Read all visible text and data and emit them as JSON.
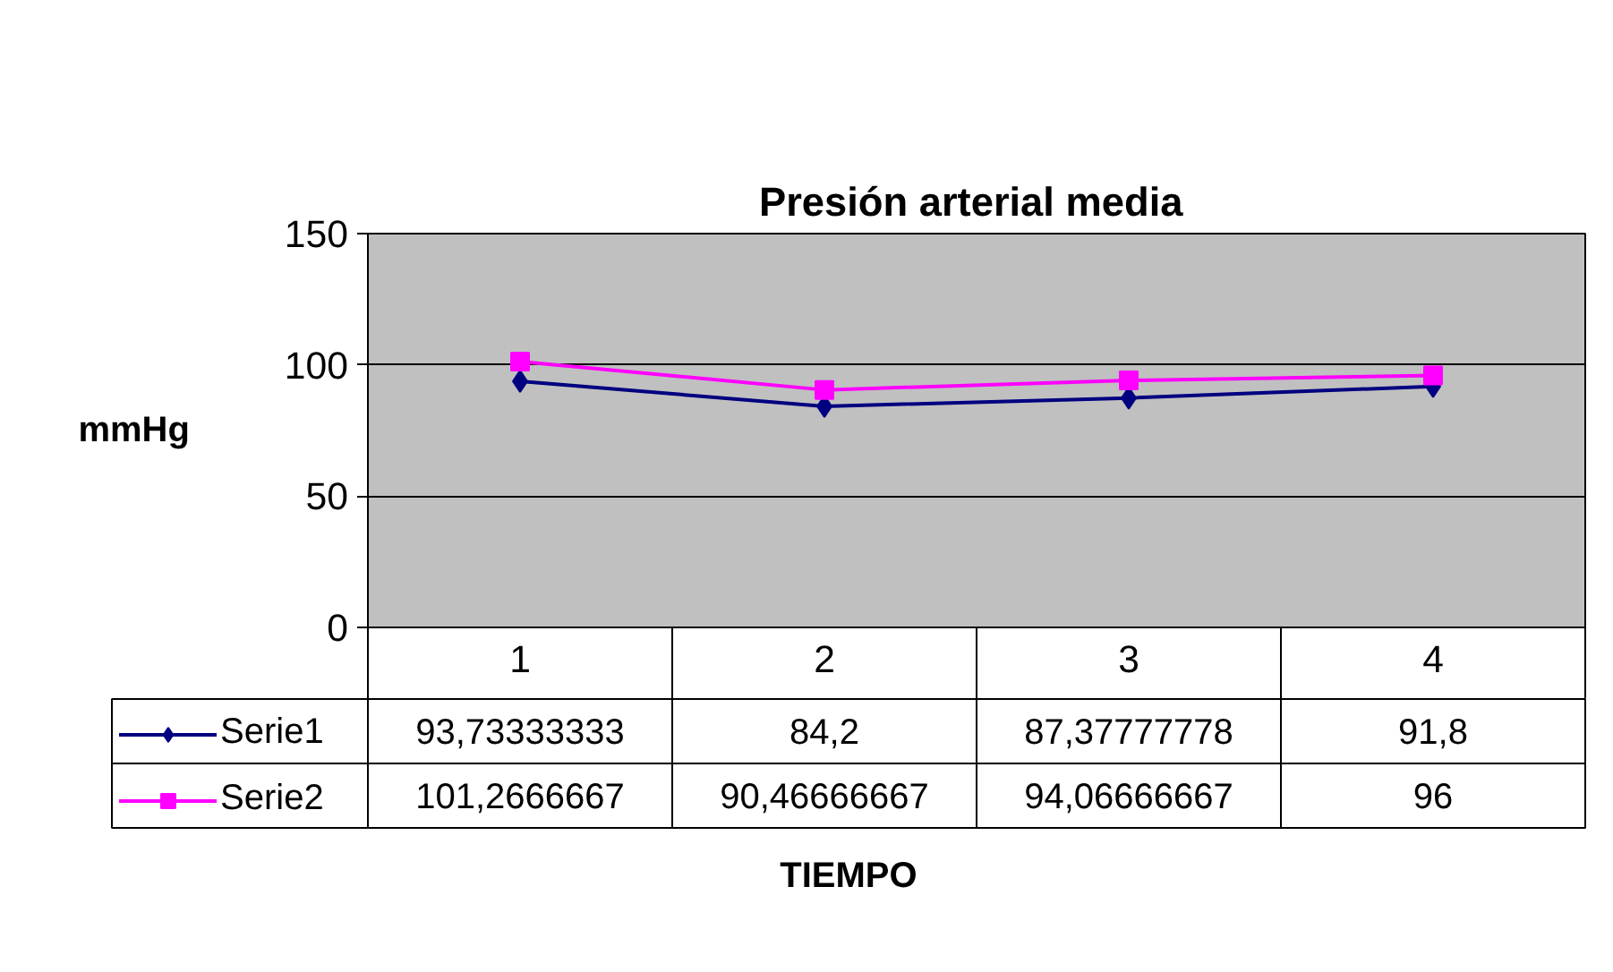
{
  "chart_data": {
    "type": "line",
    "title": "Presión  arterial media",
    "xlabel": "TIEMPO",
    "ylabel": "mmHg",
    "categories": [
      "1",
      "2",
      "3",
      "4"
    ],
    "series": [
      {
        "name": "Serie1",
        "color": "#000080",
        "marker": "diamond",
        "values": [
          93.73333333,
          84.2,
          87.37777778,
          91.8
        ],
        "value_labels": [
          "93,73333333",
          "84,2",
          "87,37777778",
          "91,8"
        ]
      },
      {
        "name": "Serie2",
        "color": "#ff00ff",
        "marker": "square",
        "values": [
          101.2666667,
          90.46666667,
          94.06666667,
          96
        ],
        "value_labels": [
          "101,2666667",
          "90,46666667",
          "94,06666667",
          "96"
        ]
      }
    ],
    "ylim": [
      0,
      150
    ],
    "yticks": [
      0,
      50,
      100,
      150
    ],
    "grid": "y",
    "legend": "bottom",
    "line_style": "solid"
  }
}
